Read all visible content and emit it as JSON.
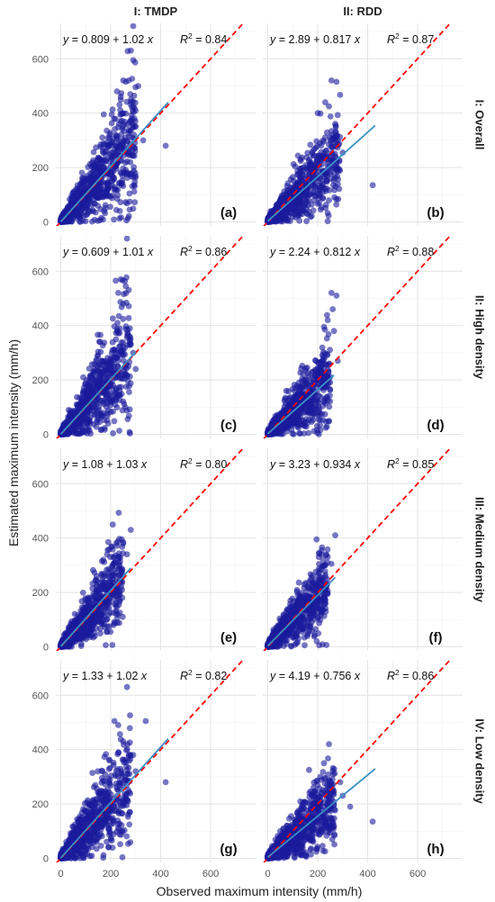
{
  "chart_data": {
    "type": "scatter",
    "xlabel": "Observed maximum intensity (mm/h)",
    "ylabel": "Estimated maximum intensity (mm/h)",
    "column_labels": [
      "I: TMDP",
      "II: RDD"
    ],
    "row_labels": [
      "I: Overall",
      "II: High density",
      "III: Medium density",
      "IV: Low density"
    ],
    "xlim": [
      -20,
      780
    ],
    "ylim": [
      -15,
      730
    ],
    "x_ticks": [
      0,
      200,
      400,
      600
    ],
    "y_ticks": [
      0,
      200,
      400,
      600
    ],
    "x_tick_labels": [
      "0",
      "200",
      "400",
      "600"
    ],
    "y_tick_labels": [
      "0",
      "200",
      "400",
      "600"
    ],
    "grid": true,
    "colors": {
      "points": "#1a1a9c",
      "fit_line": "#3a8fc4",
      "identity_line": "#ff0000"
    },
    "panels": [
      {
        "tag": "(a)",
        "row": 0,
        "col": 0,
        "eq": {
          "intercept": "0.809",
          "sign": "+",
          "slope": "1.02",
          "r2": "0.84"
        },
        "intercept": 0.809,
        "slope": 1.02,
        "fit_x_max": 430,
        "cloud_x_max": 300,
        "spread": 1.0,
        "outliers": [
          [
            290,
            720
          ],
          [
            268,
            628
          ],
          [
            290,
            595
          ],
          [
            250,
            520
          ],
          [
            310,
            500
          ],
          [
            285,
            380
          ],
          [
            300,
            350
          ],
          [
            225,
            480
          ],
          [
            420,
            280
          ],
          [
            330,
            300
          ]
        ]
      },
      {
        "tag": "(b)",
        "row": 0,
        "col": 1,
        "eq": {
          "intercept": "2.89",
          "sign": "+",
          "slope": "0.817",
          "r2": "0.87"
        },
        "intercept": 2.89,
        "slope": 0.817,
        "fit_x_max": 430,
        "cloud_x_max": 290,
        "spread": 0.8,
        "outliers": [
          [
            255,
            520
          ],
          [
            275,
            515
          ],
          [
            230,
            440
          ],
          [
            245,
            425
          ],
          [
            420,
            135
          ],
          [
            280,
            300
          ],
          [
            300,
            255
          ],
          [
            200,
            400
          ],
          [
            270,
            360
          ]
        ]
      },
      {
        "tag": "(c)",
        "row": 1,
        "col": 0,
        "eq": {
          "intercept": "0.609",
          "sign": "+",
          "slope": "1.01",
          "r2": "0.86"
        },
        "intercept": 0.609,
        "slope": 1.01,
        "fit_x_max": 300,
        "cloud_x_max": 280,
        "spread": 1.0,
        "outliers": [
          [
            265,
            720
          ],
          [
            240,
            570
          ],
          [
            220,
            565
          ],
          [
            260,
            545
          ],
          [
            230,
            520
          ],
          [
            250,
            480
          ],
          [
            280,
            330
          ],
          [
            300,
            240
          ],
          [
            290,
            300
          ]
        ]
      },
      {
        "tag": "(d)",
        "row": 1,
        "col": 1,
        "eq": {
          "intercept": "2.24",
          "sign": "+",
          "slope": "0.812",
          "r2": "0.88"
        },
        "intercept": 2.24,
        "slope": 0.812,
        "fit_x_max": 265,
        "cloud_x_max": 250,
        "spread": 0.8,
        "outliers": [
          [
            255,
            520
          ],
          [
            275,
            510
          ],
          [
            260,
            460
          ],
          [
            240,
            420
          ],
          [
            265,
            380
          ],
          [
            280,
            270
          ],
          [
            225,
            395
          ]
        ]
      },
      {
        "tag": "(e)",
        "row": 2,
        "col": 0,
        "eq": {
          "intercept": "1.08",
          "sign": "+",
          "slope": "1.03",
          "r2": "0.80"
        },
        "intercept": 1.08,
        "slope": 1.03,
        "fit_x_max": 280,
        "cloud_x_max": 250,
        "spread": 0.85,
        "outliers": [
          [
            190,
            385
          ],
          [
            280,
            430
          ],
          [
            250,
            380
          ],
          [
            210,
            330
          ],
          [
            265,
            340
          ],
          [
            170,
            320
          ],
          [
            235,
            300
          ]
        ]
      },
      {
        "tag": "(f)",
        "row": 2,
        "col": 1,
        "eq": {
          "intercept": "3.23",
          "sign": "+",
          "slope": "0.934",
          "r2": "0.85"
        },
        "intercept": 3.23,
        "slope": 0.934,
        "fit_x_max": 270,
        "cloud_x_max": 240,
        "spread": 0.8,
        "outliers": [
          [
            195,
            395
          ],
          [
            270,
            410
          ],
          [
            205,
            345
          ],
          [
            215,
            340
          ],
          [
            240,
            330
          ],
          [
            255,
            305
          ]
        ]
      },
      {
        "tag": "(g)",
        "row": 3,
        "col": 0,
        "eq": {
          "intercept": "1.33",
          "sign": "+",
          "slope": "1.02",
          "r2": "0.82"
        },
        "intercept": 1.33,
        "slope": 1.02,
        "fit_x_max": 430,
        "cloud_x_max": 280,
        "spread": 1.0,
        "outliers": [
          [
            265,
            630
          ],
          [
            215,
            505
          ],
          [
            230,
            490
          ],
          [
            340,
            505
          ],
          [
            290,
            380
          ],
          [
            420,
            280
          ],
          [
            250,
            430
          ],
          [
            300,
            320
          ]
        ]
      },
      {
        "tag": "(h)",
        "row": 3,
        "col": 1,
        "eq": {
          "intercept": "4.19",
          "sign": "+",
          "slope": "0.756",
          "r2": "0.86"
        },
        "intercept": 4.19,
        "slope": 0.756,
        "fit_x_max": 430,
        "cloud_x_max": 270,
        "spread": 0.75,
        "outliers": [
          [
            245,
            420
          ],
          [
            225,
            350
          ],
          [
            420,
            135
          ],
          [
            300,
            230
          ],
          [
            260,
            320
          ],
          [
            290,
            280
          ],
          [
            330,
            190
          ]
        ]
      }
    ]
  }
}
